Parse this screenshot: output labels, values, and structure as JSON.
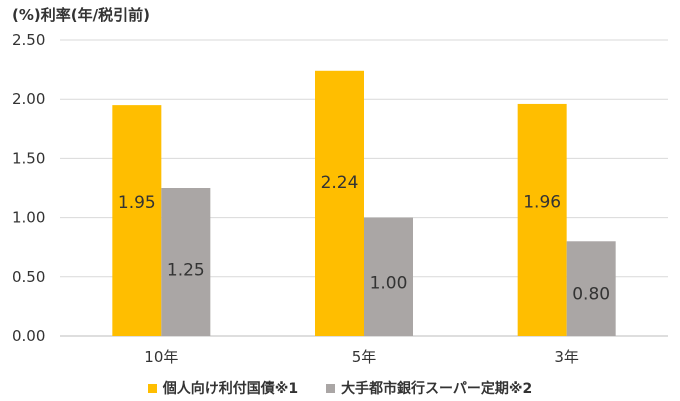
{
  "chart_data": {
    "type": "bar",
    "title": "",
    "ylabel": "(%)利率(年/税引前)",
    "xlabel": "",
    "categories": [
      "10年",
      "5年",
      "3年"
    ],
    "series": [
      {
        "name": "個人向け利付国債※1",
        "color": "#ffbe00",
        "values": [
          1.95,
          2.24,
          1.96
        ],
        "labels": [
          "1.95",
          "2.24",
          "1.96"
        ]
      },
      {
        "name": "大手都市銀行スーパー定期※2",
        "color": "#aaa6a5",
        "values": [
          1.25,
          1.0,
          0.8
        ],
        "labels": [
          "1.25",
          "1.00",
          "0.80"
        ]
      }
    ],
    "ylim": [
      0,
      2.5
    ],
    "yticks": [
      "0.00",
      "0.50",
      "1.00",
      "1.50",
      "2.00",
      "2.50"
    ],
    "grid": true,
    "legend_position": "bottom"
  }
}
